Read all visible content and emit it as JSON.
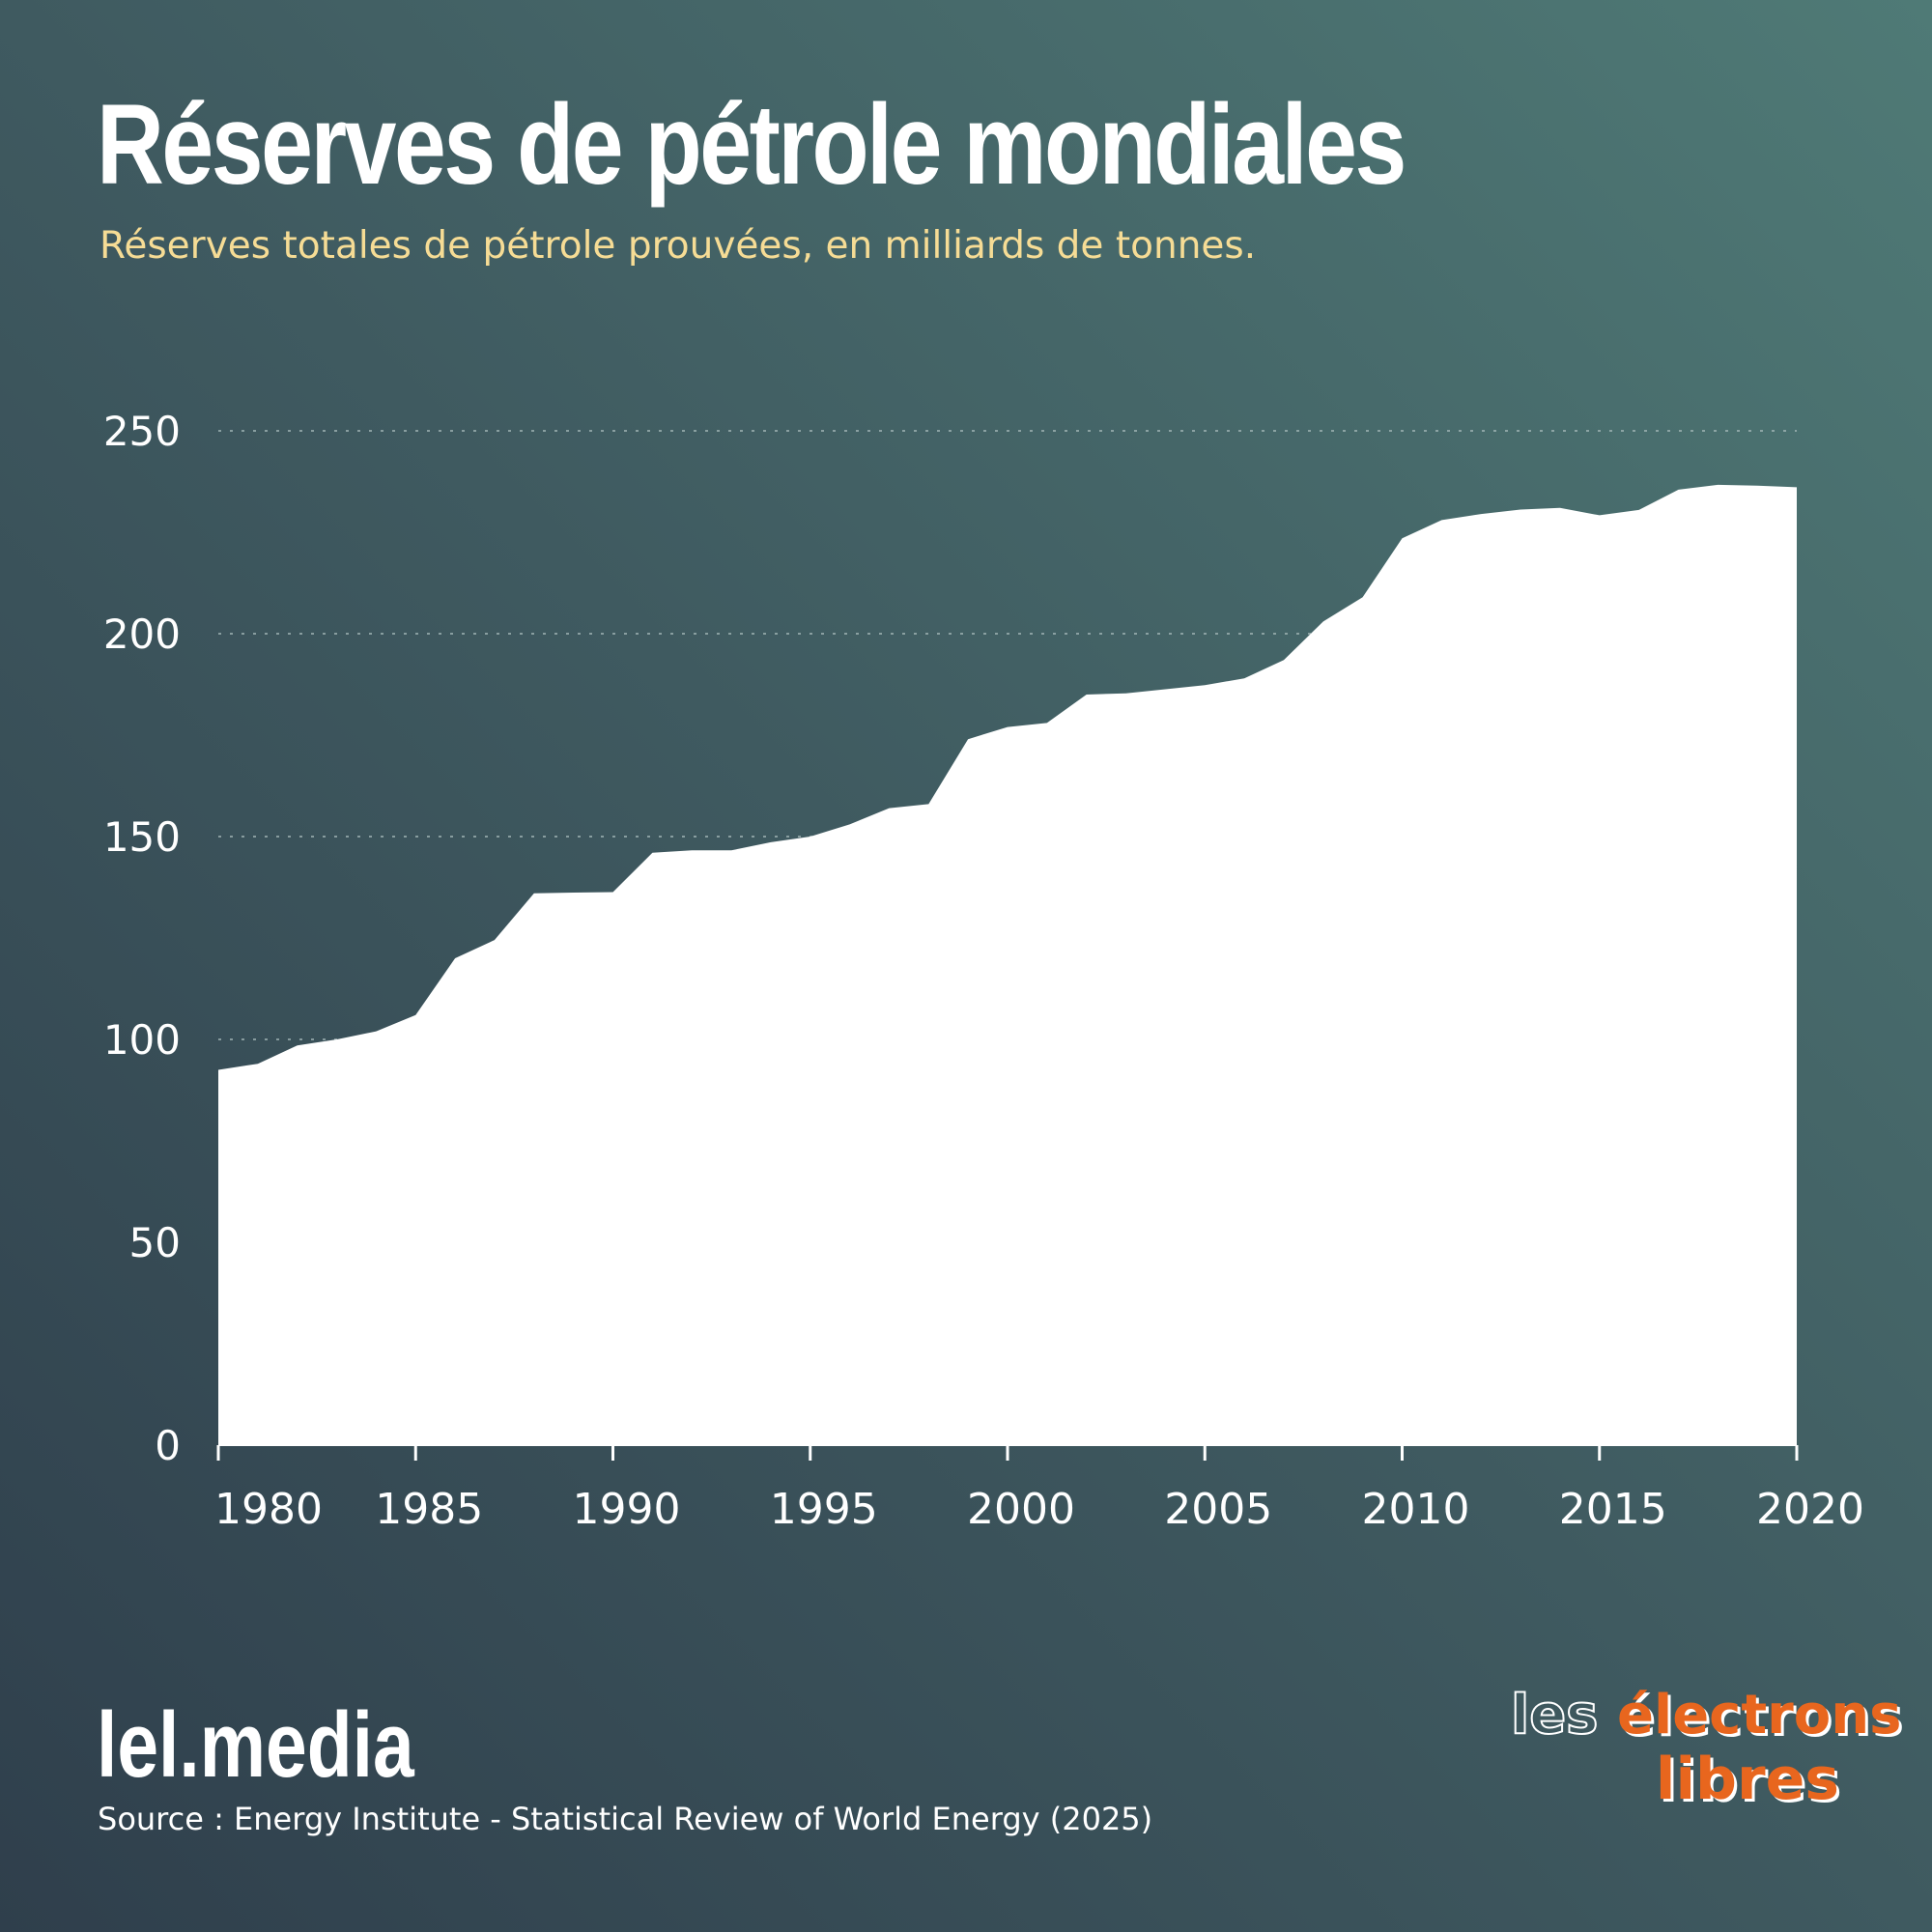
{
  "header": {
    "title": "Réserves de pétrole mondiales",
    "subtitle": "Réserves totales de pétrole prouvées, en milliards de tonnes."
  },
  "footer": {
    "brand": "lel.media",
    "source": "Source :  Energy Institute - Statistical Review of World Energy (2025)",
    "logo_line1_a": "les",
    "logo_line1_b": "électrons",
    "logo_line2": "libres"
  },
  "colors": {
    "area": "#ffffff",
    "subtitle": "#f6dc95",
    "logo_accent": "#e8661e",
    "grid": "#a9bcbc"
  },
  "chart_data": {
    "type": "area",
    "title": "Réserves de pétrole mondiales",
    "subtitle": "Réserves totales de pétrole prouvées, en milliards de tonnes.",
    "xlabel": "",
    "ylabel": "",
    "xlim": [
      1980,
      2020
    ],
    "ylim": [
      0,
      250
    ],
    "x_ticks": [
      1980,
      1985,
      1990,
      1995,
      2000,
      2005,
      2010,
      2015,
      2020
    ],
    "y_ticks": [
      0,
      50,
      100,
      150,
      200,
      250
    ],
    "grid": "horizontal dotted",
    "legend": "none",
    "series": [
      {
        "x": [
          1980,
          1981,
          1982,
          1983,
          1984,
          1985,
          1986,
          1987,
          1988,
          1989,
          1990,
          1991,
          1992,
          1993,
          1994,
          1995,
          1996,
          1997,
          1998,
          1999,
          2000,
          2001,
          2002,
          2003,
          2004,
          2005,
          2006,
          2007,
          2008,
          2009,
          2010,
          2011,
          2012,
          2013,
          2014,
          2015,
          2016,
          2017,
          2018,
          2019,
          2020
        ],
        "values": [
          92.5,
          94,
          98.5,
          100,
          102,
          106,
          120,
          124.5,
          136,
          136.2,
          136.3,
          146,
          146.6,
          146.6,
          148.6,
          150,
          153,
          157,
          158,
          174,
          177,
          178,
          185,
          185.3,
          186.3,
          187.3,
          189,
          193.5,
          203,
          209,
          223.5,
          228,
          229.5,
          230.6,
          231,
          229.2,
          230.5,
          235.5,
          236.7,
          236.5,
          236.1
        ]
      }
    ]
  }
}
